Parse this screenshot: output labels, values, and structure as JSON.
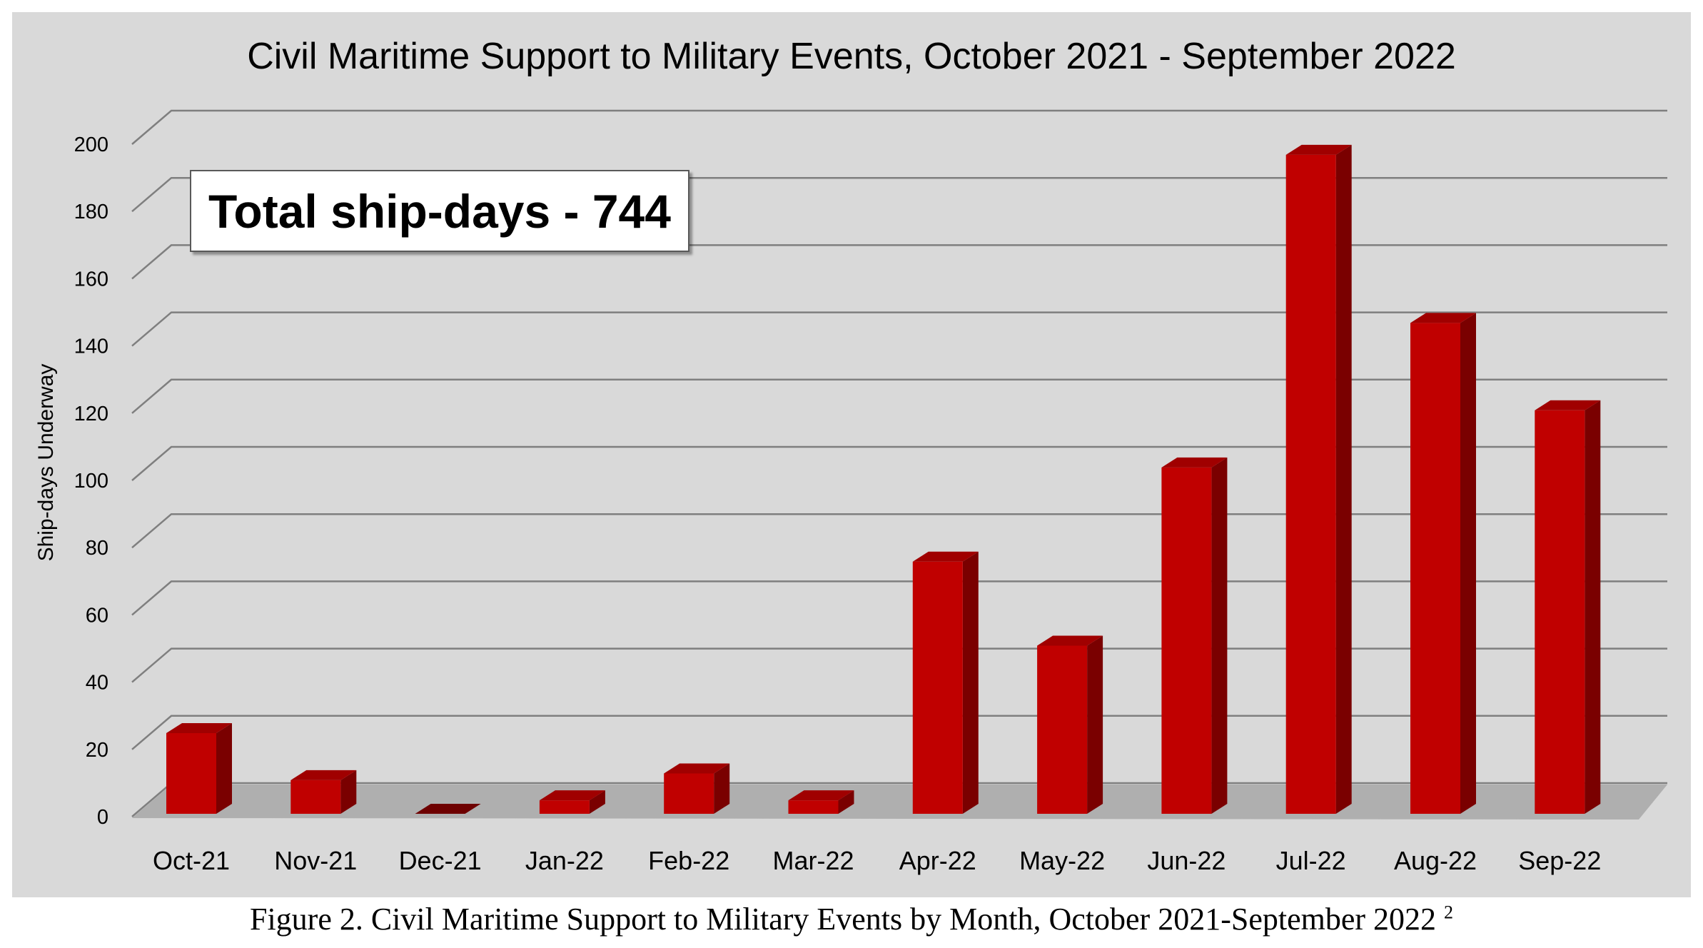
{
  "chart_data": {
    "type": "bar",
    "title": "Civil Maritime Support to Military Events, October 2021 - September 2022",
    "ylabel": "Ship-days Underway",
    "xlabel": "",
    "categories": [
      "Oct-21",
      "Nov-21",
      "Dec-21",
      "Jan-22",
      "Feb-22",
      "Mar-22",
      "Apr-22",
      "May-22",
      "Jun-22",
      "Jul-22",
      "Aug-22",
      "Sep-22"
    ],
    "values": [
      24,
      10,
      0,
      4,
      12,
      4,
      75,
      50,
      103,
      196,
      146,
      120
    ],
    "ylim": [
      0,
      200
    ],
    "yticks": [
      "0",
      "20",
      "40",
      "60",
      "80",
      "100",
      "120",
      "140",
      "160",
      "180",
      "200"
    ],
    "grid": true,
    "style": "3d-column",
    "colors": {
      "bar_front": "#c00000",
      "bar_side": "#7a0000",
      "bar_top": "#a00000",
      "plot_bg": "#d9d9d9"
    }
  },
  "annotation": {
    "text": "Total ship-days - 744"
  },
  "caption": {
    "text": "Figure 2. Civil Maritime Support to Military Events by Month, October 2021-September 2022",
    "footnote": "2"
  }
}
